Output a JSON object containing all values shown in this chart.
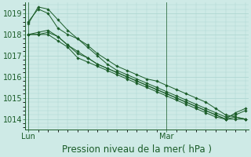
{
  "title": "Pression niveau de la mer( hPa )",
  "ylabel_values": [
    1014,
    1015,
    1016,
    1017,
    1018,
    1019
  ],
  "ylim": [
    1013.5,
    1019.5
  ],
  "bg_color": "#ceeae6",
  "grid_color": "#aad4ce",
  "line_color": "#1a5c28",
  "marker_color": "#1a5c28",
  "series": [
    [
      1018.6,
      1019.2,
      1019.0,
      1018.3,
      1018.0,
      1017.8,
      1017.5,
      1017.1,
      1016.8,
      1016.5,
      1016.3,
      1016.1,
      1015.9,
      1015.8,
      1015.6,
      1015.4,
      1015.2,
      1015.0,
      1014.8,
      1014.5,
      1014.2,
      1014.1,
      1014.0
    ],
    [
      1018.0,
      1018.1,
      1018.2,
      1017.9,
      1017.5,
      1017.1,
      1016.9,
      1016.6,
      1016.4,
      1016.2,
      1016.0,
      1015.8,
      1015.6,
      1015.4,
      1015.2,
      1015.0,
      1014.8,
      1014.6,
      1014.4,
      1014.2,
      1014.0,
      1014.0,
      1014.0
    ],
    [
      1018.0,
      1018.0,
      1018.1,
      1017.9,
      1017.5,
      1017.2,
      1016.9,
      1016.6,
      1016.4,
      1016.2,
      1016.0,
      1015.8,
      1015.6,
      1015.4,
      1015.2,
      1015.0,
      1014.8,
      1014.6,
      1014.4,
      1014.2,
      1014.0,
      1014.1,
      1014.0
    ],
    [
      1018.5,
      1019.3,
      1019.2,
      1018.7,
      1018.2,
      1017.8,
      1017.4,
      1017.0,
      1016.6,
      1016.3,
      1016.1,
      1015.9,
      1015.7,
      1015.5,
      1015.3,
      1015.1,
      1014.9,
      1014.7,
      1014.5,
      1014.3,
      1014.1,
      1014.2,
      1014.4
    ],
    [
      1018.0,
      1018.0,
      1018.0,
      1017.7,
      1017.4,
      1016.9,
      1016.7,
      1016.5,
      1016.3,
      1016.1,
      1015.9,
      1015.7,
      1015.5,
      1015.3,
      1015.1,
      1014.9,
      1014.7,
      1014.5,
      1014.3,
      1014.1,
      1014.0,
      1014.3,
      1014.5
    ]
  ],
  "n_points": 23,
  "lun_idx": 0,
  "mar_idx": 14,
  "label_fontsize": 8.5,
  "tick_fontsize": 7,
  "minor_grid_steps": 5
}
